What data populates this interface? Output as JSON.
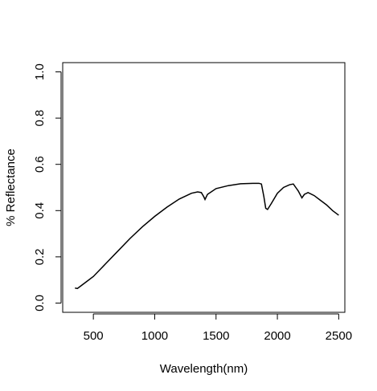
{
  "chart_data": {
    "type": "line",
    "title": "",
    "xlabel": "Wavelength(nm)",
    "ylabel": "% Reflectance",
    "xlim": [
      250,
      2550
    ],
    "ylim": [
      -0.04,
      1.04
    ],
    "x_ticks": [
      500,
      1000,
      1500,
      2000,
      2500
    ],
    "x_tick_labels": [
      "500",
      "1000",
      "1500",
      "2000",
      "2500"
    ],
    "y_ticks": [
      0.0,
      0.2,
      0.4,
      0.6,
      0.8,
      1.0
    ],
    "y_tick_labels": [
      "0.0",
      "0.2",
      "0.4",
      "0.6",
      "0.8",
      "1.0"
    ],
    "grid": false,
    "line_color": "#000000",
    "series": [
      {
        "x": [
          350,
          370,
          400,
          450,
          500,
          600,
          700,
          800,
          900,
          1000,
          1100,
          1200,
          1300,
          1350,
          1380,
          1400,
          1410,
          1430,
          1500,
          1600,
          1700,
          1800,
          1850,
          1870,
          1890,
          1905,
          1920,
          1950,
          2000,
          2050,
          2100,
          2130,
          2150,
          2170,
          2200,
          2220,
          2250,
          2300,
          2350,
          2400,
          2450,
          2500
        ],
        "y": [
          0.065,
          0.063,
          0.075,
          0.095,
          0.115,
          0.17,
          0.225,
          0.28,
          0.33,
          0.375,
          0.415,
          0.45,
          0.475,
          0.481,
          0.478,
          0.46,
          0.448,
          0.47,
          0.495,
          0.508,
          0.516,
          0.518,
          0.518,
          0.515,
          0.46,
          0.41,
          0.405,
          0.43,
          0.475,
          0.5,
          0.512,
          0.515,
          0.5,
          0.485,
          0.455,
          0.47,
          0.478,
          0.465,
          0.445,
          0.425,
          0.4,
          0.38
        ]
      }
    ]
  }
}
